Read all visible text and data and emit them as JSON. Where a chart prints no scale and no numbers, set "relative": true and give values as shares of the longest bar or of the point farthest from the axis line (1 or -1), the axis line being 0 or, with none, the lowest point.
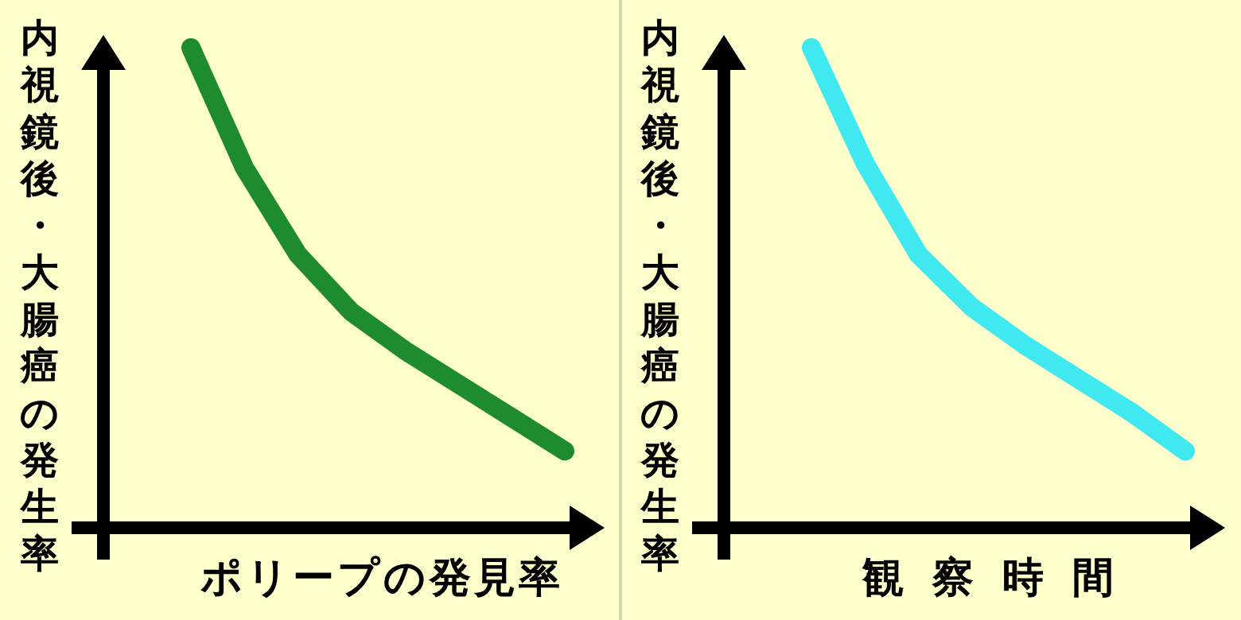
{
  "chart_data": [
    {
      "type": "line",
      "relative": true,
      "xlabel": "ポリープの発見率",
      "ylabel": "内視鏡後・大腸癌の発生率",
      "categories": [
        null,
        null,
        null,
        null,
        null,
        null,
        null,
        null
      ],
      "series": [
        {
          "color": "#1e8c2e",
          "values": [
            1,
            0.75,
            0.57,
            0.45,
            0.37,
            0.3,
            0.23,
            0.16
          ]
        }
      ],
      "marker": "none",
      "line_style": "solid"
    },
    {
      "type": "line",
      "relative": true,
      "xlabel": "観察時間",
      "ylabel": "内視鏡後・大腸癌の発生率",
      "categories": [
        null,
        null,
        null,
        null,
        null,
        null,
        null,
        null
      ],
      "series": [
        {
          "color": "#40e8f0",
          "values": [
            1,
            0.76,
            0.57,
            0.46,
            0.38,
            0.31,
            0.24,
            0.16
          ]
        }
      ],
      "marker": "none",
      "line_style": "solid"
    }
  ]
}
